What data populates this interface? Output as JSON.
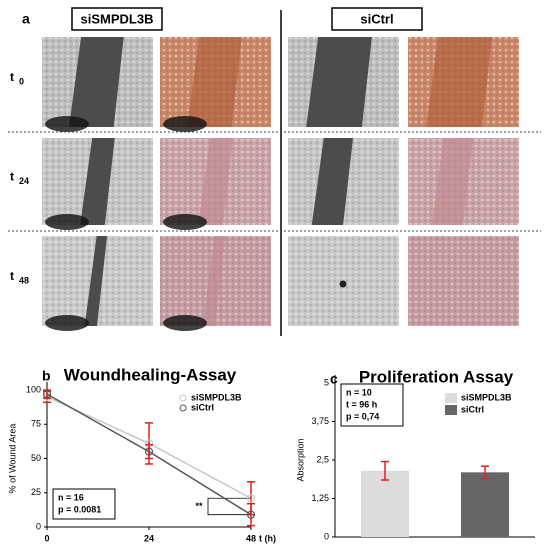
{
  "panel_a": {
    "label": "a",
    "columns": [
      "siSMPDL3B",
      "siCtrl"
    ],
    "rows": [
      {
        "t": "t",
        "sub": "0"
      },
      {
        "t": "t",
        "sub": "24"
      },
      {
        "t": "t",
        "sub": "48"
      }
    ]
  },
  "chart_data": [
    {
      "type": "line",
      "panel": "b",
      "title": "Woundhealing-Assay",
      "xlabel": "t (h)",
      "ylabel": "% of Wound Area",
      "x": [
        0,
        24,
        48
      ],
      "xlim": [
        0,
        48
      ],
      "xticks": [
        0,
        24,
        48
      ],
      "ylim": [
        0,
        100
      ],
      "yticks": [
        0,
        25,
        50,
        75,
        100
      ],
      "series": [
        {
          "name": "siSMPDL3B",
          "color": "#c8c8c8",
          "values": [
            95,
            61,
            21
          ],
          "errors": [
            4,
            15,
            12
          ]
        },
        {
          "name": "siCtrl",
          "color": "#555555",
          "values": [
            97,
            55,
            9
          ],
          "errors": [
            3,
            5,
            8
          ]
        }
      ],
      "error_color": "#e02020",
      "annotation": [
        "n = 16",
        "p = 0.0081"
      ],
      "significance": "**",
      "legend": "upper right"
    },
    {
      "type": "bar",
      "panel": "c",
      "title": "Proliferation Assay",
      "ylabel": "Absorption",
      "ylim": [
        0,
        5
      ],
      "yticks": [
        0,
        {
          "value": 1.25,
          "label": "1,25"
        },
        {
          "value": 2.5,
          "label": "2,5"
        },
        {
          "value": 3.75,
          "label": "3,75"
        },
        5
      ],
      "series": [
        {
          "name": "siSMPDL3B",
          "color": "#dcdcdc",
          "values": [
            2.15
          ],
          "errors": [
            0.3
          ]
        },
        {
          "name": "siCtrl",
          "color": "#666666",
          "values": [
            2.1
          ],
          "errors": [
            0.2
          ]
        }
      ],
      "error_color": "#e02020",
      "annotation": [
        "n = 10",
        "t = 96 h",
        "p = 0,74"
      ],
      "legend": "upper right"
    }
  ]
}
